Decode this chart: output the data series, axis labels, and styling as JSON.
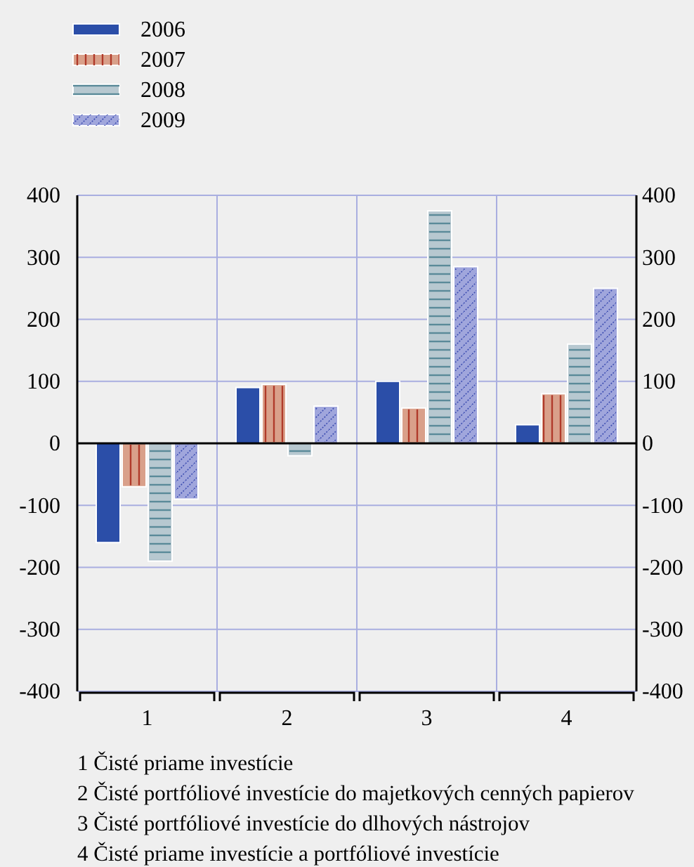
{
  "chart_data": {
    "type": "bar",
    "categories": [
      "1",
      "2",
      "3",
      "4"
    ],
    "series": [
      {
        "name": "2006",
        "color": "#2b4ea8",
        "values": [
          -160,
          90,
          100,
          30
        ]
      },
      {
        "name": "2007",
        "color": "#d9a08a",
        "values": [
          -70,
          95,
          57,
          80
        ]
      },
      {
        "name": "2008",
        "color": "#b7c8d0",
        "values": [
          -190,
          -20,
          375,
          160
        ]
      },
      {
        "name": "2009",
        "color": "#a0a6dc",
        "values": [
          -90,
          60,
          285,
          250
        ]
      }
    ],
    "ylim": [
      -400,
      400
    ],
    "yticks": [
      -400,
      -300,
      -200,
      -100,
      0,
      100,
      200,
      300,
      400
    ],
    "y2lim": [
      -400,
      400
    ],
    "y2ticks": [
      -400,
      -300,
      -200,
      -100,
      0,
      100,
      200,
      300,
      400
    ],
    "grid": true,
    "legend": "top left",
    "annotations": [
      "1 Čisté priame investície",
      "2 Čisté portfóliové investície do majetkových cenných papierov",
      "3 Čisté portfóliové investície do dlhových nástrojov",
      "4 Čisté priame investície a portfóliové investície"
    ]
  }
}
